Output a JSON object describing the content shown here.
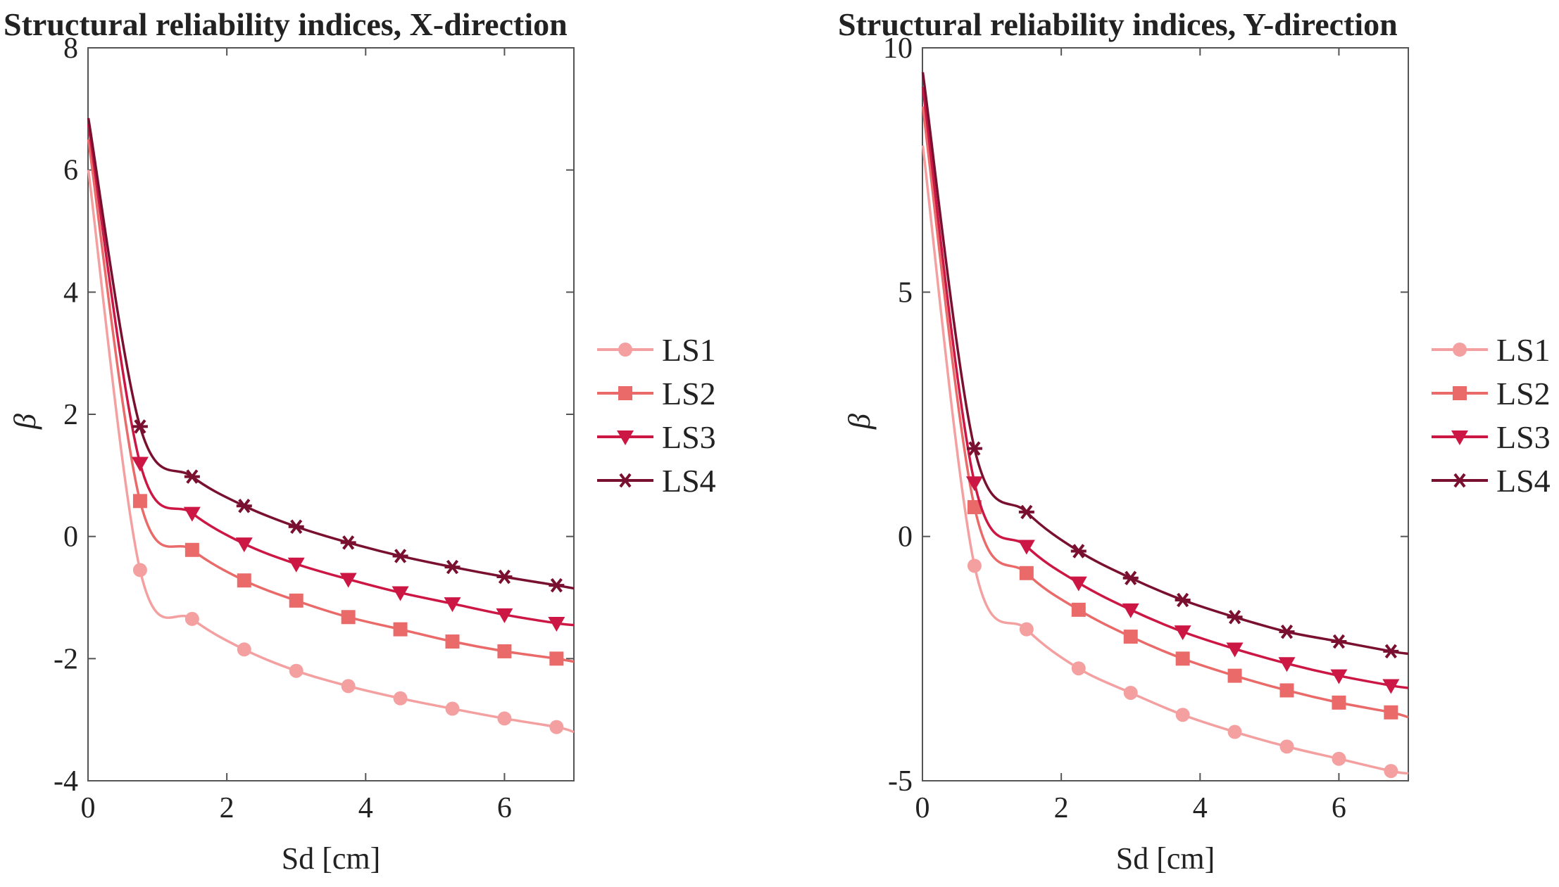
{
  "chart_data": [
    {
      "type": "line",
      "title": "Structural reliability indices, X-direction",
      "xlabel": "Sd [cm]",
      "ylabel": "β",
      "xlim": [
        0,
        7
      ],
      "ylim": [
        -4,
        8
      ],
      "xticks": [
        0,
        2,
        4,
        6
      ],
      "yticks": [
        -4,
        -2,
        0,
        2,
        4,
        6,
        8
      ],
      "grid": false,
      "legend_position": "outside-right",
      "x": [
        0.75,
        1.5,
        2.25,
        3.0,
        3.75,
        4.5,
        5.25,
        6.0,
        6.75
      ],
      "series": [
        {
          "name": "LS1",
          "color": "#f4a0a0",
          "marker": "circle",
          "curve_start": [
            0.005,
            6.0
          ],
          "curve_end": [
            7.0,
            -3.2
          ],
          "values": [
            -0.55,
            -1.35,
            -1.85,
            -2.2,
            -2.45,
            -2.65,
            -2.82,
            -2.98,
            -3.12
          ]
        },
        {
          "name": "LS2",
          "color": "#ea6a6a",
          "marker": "square",
          "curve_start": [
            0.005,
            6.5
          ],
          "curve_end": [
            7.0,
            -2.05
          ],
          "values": [
            0.58,
            -0.22,
            -0.72,
            -1.05,
            -1.32,
            -1.52,
            -1.72,
            -1.88,
            -2.0
          ]
        },
        {
          "name": "LS3",
          "color": "#cc1744",
          "marker": "triangle-down",
          "curve_start": [
            0.005,
            6.75
          ],
          "curve_end": [
            7.0,
            -1.45
          ],
          "values": [
            1.2,
            0.38,
            -0.12,
            -0.45,
            -0.7,
            -0.92,
            -1.1,
            -1.28,
            -1.42
          ]
        },
        {
          "name": "LS4",
          "color": "#7a1030",
          "marker": "asterisk",
          "curve_start": [
            0.005,
            6.85
          ],
          "curve_end": [
            7.0,
            -0.85
          ],
          "values": [
            1.8,
            0.98,
            0.5,
            0.16,
            -0.1,
            -0.32,
            -0.5,
            -0.66,
            -0.8
          ]
        }
      ]
    },
    {
      "type": "line",
      "title": "Structural reliability indices, Y-direction",
      "xlabel": "Sd [cm]",
      "ylabel": "β",
      "xlim": [
        0,
        7
      ],
      "ylim": [
        -5,
        10
      ],
      "xticks": [
        0,
        2,
        4,
        6
      ],
      "yticks": [
        -5,
        0,
        5,
        10
      ],
      "grid": false,
      "legend_position": "outside-right",
      "x": [
        0.75,
        1.5,
        2.25,
        3.0,
        3.75,
        4.5,
        5.25,
        6.0,
        6.75
      ],
      "series": [
        {
          "name": "LS1",
          "color": "#f4a0a0",
          "marker": "circle",
          "curve_start": [
            0.005,
            8.0
          ],
          "curve_end": [
            7.0,
            -4.85
          ],
          "values": [
            -0.6,
            -1.9,
            -2.7,
            -3.2,
            -3.65,
            -4.0,
            -4.3,
            -4.55,
            -4.8
          ]
        },
        {
          "name": "LS2",
          "color": "#ea6a6a",
          "marker": "square",
          "curve_start": [
            0.005,
            8.8
          ],
          "curve_end": [
            7.0,
            -3.7
          ],
          "values": [
            0.6,
            -0.75,
            -1.5,
            -2.05,
            -2.5,
            -2.85,
            -3.15,
            -3.4,
            -3.6
          ]
        },
        {
          "name": "LS3",
          "color": "#cc1744",
          "marker": "triangle-down",
          "curve_start": [
            0.005,
            9.2
          ],
          "curve_end": [
            7.0,
            -3.1
          ],
          "values": [
            1.1,
            -0.2,
            -0.95,
            -1.5,
            -1.95,
            -2.3,
            -2.6,
            -2.85,
            -3.05
          ]
        },
        {
          "name": "LS4",
          "color": "#7a1030",
          "marker": "asterisk",
          "curve_start": [
            0.005,
            9.5
          ],
          "curve_end": [
            7.0,
            -2.4
          ],
          "values": [
            1.8,
            0.5,
            -0.3,
            -0.85,
            -1.3,
            -1.65,
            -1.95,
            -2.15,
            -2.35
          ]
        }
      ]
    }
  ]
}
